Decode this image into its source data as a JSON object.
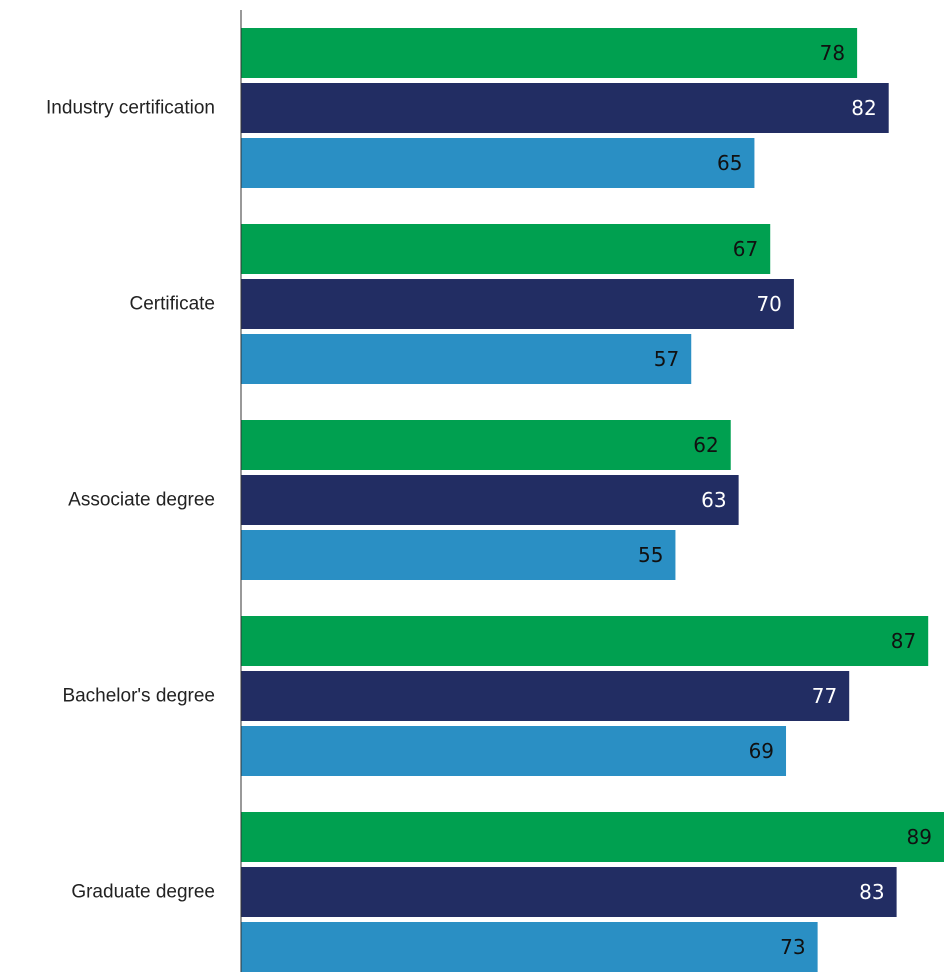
{
  "chart_data": {
    "type": "bar",
    "orientation": "horizontal",
    "categories": [
      "Industry certification",
      "Certificate",
      "Associate degree",
      "Bachelor's degree",
      "Graduate degree"
    ],
    "series": [
      {
        "color": "#00a050",
        "label_color": "#111111",
        "values": [
          78,
          67,
          62,
          87,
          89
        ]
      },
      {
        "color": "#222d63",
        "label_color": "#ffffff",
        "values": [
          82,
          70,
          63,
          77,
          83
        ]
      },
      {
        "color": "#2a8fc4",
        "label_color": "#111111",
        "values": [
          65,
          57,
          55,
          69,
          73
        ]
      }
    ],
    "xlim": [
      0,
      89
    ],
    "grid": false,
    "legend": "none",
    "axis_line_color": "#333333"
  }
}
